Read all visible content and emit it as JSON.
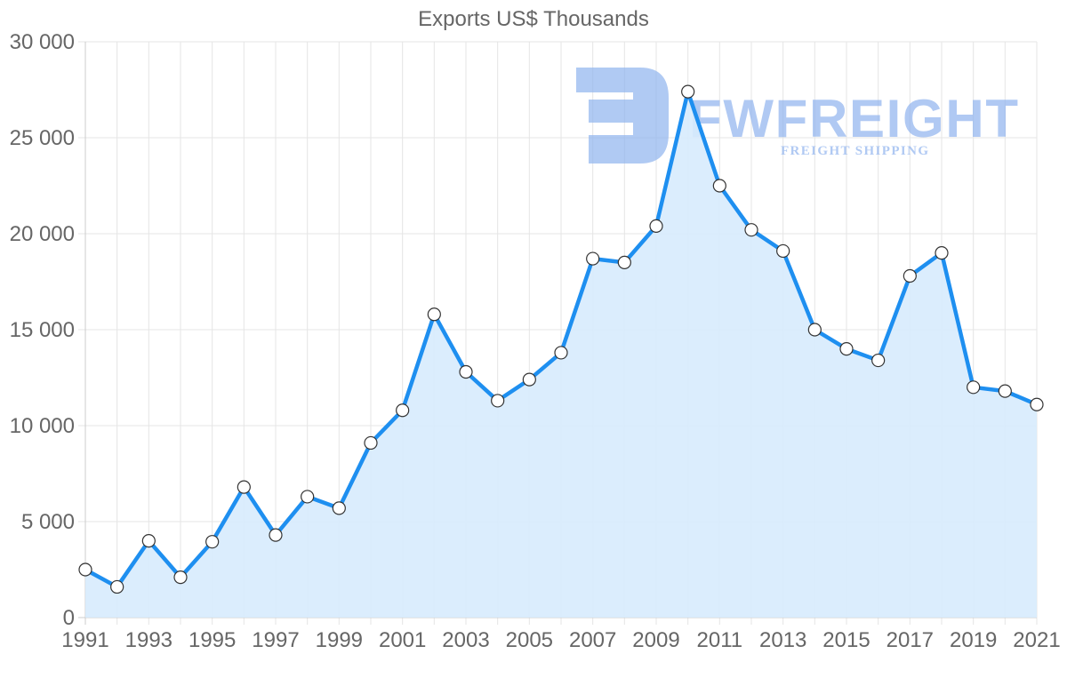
{
  "title": "Exports US$ Thousands",
  "watermark": {
    "brand": "FWFREIGHT",
    "tagline": "FREIGHT SHIPPING",
    "color": "#8fb3ee"
  },
  "colors": {
    "line": "#1e8ff0",
    "fill": "#d7ebfd",
    "grid": "#e5e5e5",
    "axis_text": "#666666"
  },
  "chart_data": {
    "type": "area",
    "title": "Exports US$ Thousands",
    "xlabel": "",
    "ylabel": "",
    "ylim": [
      0,
      30000
    ],
    "yticks": [
      "0",
      "5 000",
      "10 000",
      "15 000",
      "20 000",
      "25 000",
      "30 000"
    ],
    "xticks": [
      "1991",
      "1993",
      "1995",
      "1997",
      "1999",
      "2001",
      "2003",
      "2005",
      "2007",
      "2009",
      "2011",
      "2013",
      "2015",
      "2017",
      "2019",
      "2021"
    ],
    "grid": true,
    "legend": "none",
    "x": [
      1991,
      1992,
      1993,
      1994,
      1995,
      1996,
      1997,
      1998,
      1999,
      2000,
      2001,
      2002,
      2003,
      2004,
      2005,
      2006,
      2007,
      2008,
      2009,
      2010,
      2011,
      2012,
      2013,
      2014,
      2015,
      2016,
      2017,
      2018,
      2019,
      2020,
      2021
    ],
    "series": [
      {
        "name": "Exports US$ Thousands",
        "values": [
          2500,
          1600,
          4000,
          2100,
          3950,
          6800,
          4300,
          6300,
          5700,
          9100,
          10800,
          15800,
          12800,
          11300,
          12400,
          13800,
          18700,
          18500,
          20400,
          27400,
          22500,
          20200,
          19100,
          15000,
          14000,
          13400,
          17800,
          19000,
          12000,
          11800,
          11100
        ]
      }
    ]
  }
}
